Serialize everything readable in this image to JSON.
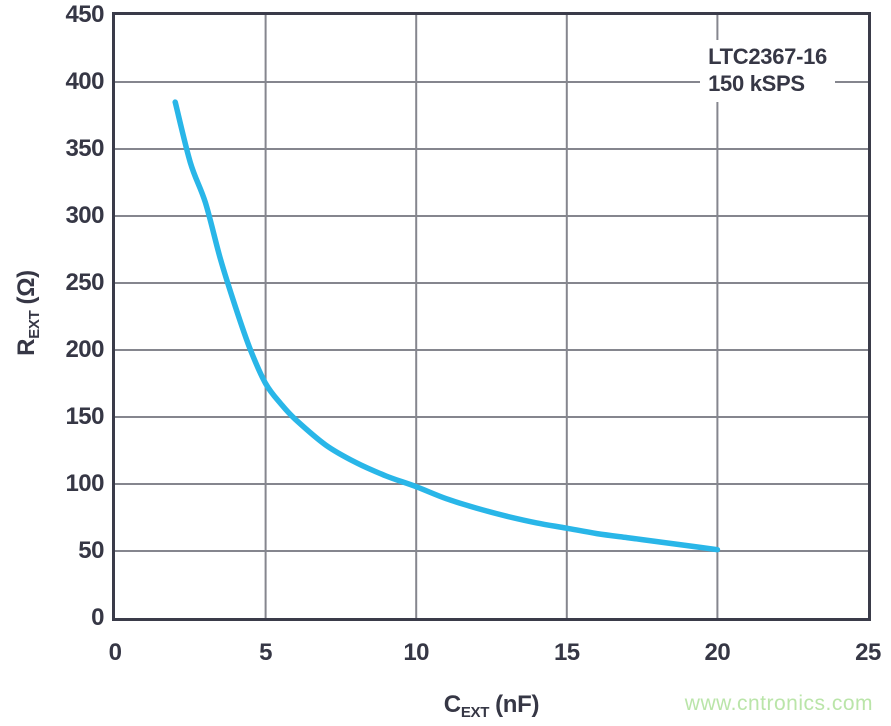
{
  "figure": {
    "watermark": "www.cntronics.com"
  },
  "chart_data": {
    "type": "line",
    "title": "",
    "annotation": [
      "LTC2367-16",
      "150 kSPS"
    ],
    "xlabel": {
      "base": "C",
      "sub": "EXT",
      "unit": "(nF)"
    },
    "ylabel": {
      "base": "R",
      "sub": "EXT",
      "unit": "(Ω)"
    },
    "xlim": [
      0,
      25
    ],
    "ylim": [
      0,
      450
    ],
    "xticks": [
      0,
      5,
      10,
      15,
      20,
      25
    ],
    "yticks": [
      0,
      50,
      100,
      150,
      200,
      250,
      300,
      350,
      400,
      450
    ],
    "grid": true,
    "legend_position": "none",
    "series": [
      {
        "name": "LTC2367-16 150 kSPS",
        "x": [
          2,
          2.5,
          3,
          3.5,
          4,
          4.5,
          5,
          5.5,
          6,
          7,
          8,
          9,
          10,
          11,
          12,
          13,
          14,
          15,
          16,
          17,
          18,
          19,
          20
        ],
        "y": [
          385,
          340,
          310,
          268,
          232,
          200,
          175,
          160,
          148,
          129,
          116,
          106,
          98,
          89,
          82,
          76,
          71,
          67,
          63,
          60,
          57,
          54,
          51
        ]
      }
    ],
    "colors": {
      "line": "#29b6e8",
      "axis": "#3a3b49",
      "grid": "#85868e",
      "text": "#363745",
      "watermark": "#bae5a9"
    }
  }
}
